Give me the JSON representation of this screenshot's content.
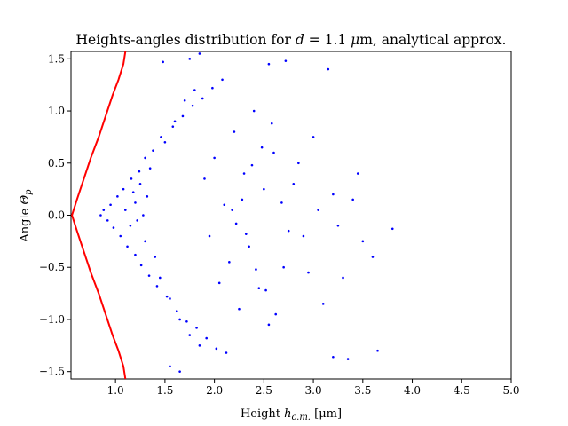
{
  "chart_data": {
    "type": "scatter",
    "title": "Heights-angles distribution for d = 1.1 μm, analytical approx.",
    "title_parts": {
      "lead": "Heights-angles distribution for ",
      "var_d": "d",
      "eq": " = 1.1 ",
      "mu": "μ",
      "tail": "m, analytical approx."
    },
    "xlabel": "Height h_c.m. [μm]",
    "xlabel_parts": {
      "lead": "Height ",
      "var_h": "h",
      "sub": "c.m.",
      "tail": " [μm]"
    },
    "ylabel": "Angle Θ_p",
    "ylabel_parts": {
      "lead": "Angle ",
      "var": "Θ",
      "sub": "p"
    },
    "xlim": [
      0.55,
      5.0
    ],
    "ylim": [
      -1.5708,
      1.5708
    ],
    "x_ticks": [
      "1.0",
      "1.5",
      "2.0",
      "2.5",
      "3.0",
      "3.5",
      "4.0",
      "4.5",
      "5.0"
    ],
    "x_tick_values": [
      1.0,
      1.5,
      2.0,
      2.5,
      3.0,
      3.5,
      4.0,
      4.5,
      5.0
    ],
    "y_ticks": [
      "1.5",
      "1.0",
      "0.5",
      "0.0",
      "−0.5",
      "−1.0",
      "−1.5"
    ],
    "y_tick_values": [
      1.5,
      1.0,
      0.5,
      0.0,
      -0.5,
      -1.0,
      -1.5
    ],
    "grid": false,
    "series": [
      {
        "kind": "scatter",
        "color": "#0000ff",
        "marker_radius_note": "small dots",
        "points": [
          [
            1.1,
            0.05
          ],
          [
            1.15,
            -0.1
          ],
          [
            1.2,
            0.12
          ],
          [
            1.25,
            0.3
          ],
          [
            1.3,
            -0.25
          ],
          [
            1.35,
            0.45
          ],
          [
            1.4,
            -0.4
          ],
          [
            1.28,
            0.0
          ],
          [
            1.22,
            -0.05
          ],
          [
            1.32,
            0.18
          ],
          [
            1.18,
            0.22
          ],
          [
            1.45,
            -0.6
          ],
          [
            1.5,
            0.7
          ],
          [
            1.55,
            -0.8
          ],
          [
            1.6,
            0.9
          ],
          [
            1.65,
            -1.0
          ],
          [
            1.7,
            1.1
          ],
          [
            1.75,
            -1.15
          ],
          [
            1.8,
            1.2
          ],
          [
            1.85,
            -1.25
          ],
          [
            1.9,
            0.35
          ],
          [
            1.95,
            -0.2
          ],
          [
            2.0,
            0.55
          ],
          [
            2.05,
            -0.65
          ],
          [
            2.1,
            0.1
          ],
          [
            2.15,
            -0.45
          ],
          [
            2.2,
            0.8
          ],
          [
            2.25,
            -0.9
          ],
          [
            2.3,
            0.4
          ],
          [
            2.35,
            -0.3
          ],
          [
            2.4,
            1.0
          ],
          [
            2.45,
            -0.7
          ],
          [
            2.5,
            0.25
          ],
          [
            2.55,
            -1.05
          ],
          [
            2.6,
            0.6
          ],
          [
            2.7,
            -0.5
          ],
          [
            2.8,
            0.3
          ],
          [
            2.9,
            -0.2
          ],
          [
            3.0,
            0.75
          ],
          [
            3.1,
            -0.85
          ],
          [
            3.2,
            0.2
          ],
          [
            3.3,
            -0.6
          ],
          [
            3.45,
            0.4
          ],
          [
            3.6,
            -0.4
          ],
          [
            3.8,
            -0.13
          ],
          [
            3.65,
            -1.3
          ],
          [
            3.15,
            1.4
          ],
          [
            3.35,
            -1.38
          ],
          [
            3.2,
            -1.36
          ],
          [
            2.55,
            1.45
          ],
          [
            2.72,
            1.48
          ],
          [
            1.48,
            1.47
          ],
          [
            1.55,
            -1.45
          ],
          [
            1.65,
            -1.5
          ],
          [
            1.75,
            1.5
          ],
          [
            1.85,
            1.55
          ],
          [
            0.85,
            0.0
          ],
          [
            0.88,
            0.05
          ],
          [
            0.92,
            -0.05
          ],
          [
            0.95,
            0.1
          ],
          [
            0.98,
            -0.12
          ],
          [
            1.02,
            0.18
          ],
          [
            1.05,
            -0.2
          ],
          [
            1.08,
            0.25
          ],
          [
            1.12,
            -0.3
          ],
          [
            1.16,
            0.35
          ],
          [
            1.2,
            -0.38
          ],
          [
            1.24,
            0.42
          ],
          [
            1.26,
            -0.48
          ],
          [
            1.3,
            0.55
          ],
          [
            1.34,
            -0.58
          ],
          [
            1.38,
            0.62
          ],
          [
            1.42,
            -0.68
          ],
          [
            1.46,
            0.75
          ],
          [
            1.52,
            -0.78
          ],
          [
            1.58,
            0.85
          ],
          [
            1.62,
            -0.92
          ],
          [
            1.68,
            0.95
          ],
          [
            1.72,
            -1.02
          ],
          [
            1.78,
            1.05
          ],
          [
            1.82,
            -1.08
          ],
          [
            1.88,
            1.12
          ],
          [
            1.92,
            -1.18
          ],
          [
            1.98,
            1.22
          ],
          [
            2.02,
            -1.28
          ],
          [
            2.08,
            1.3
          ],
          [
            2.12,
            -1.32
          ],
          [
            2.18,
            0.05
          ],
          [
            2.22,
            -0.08
          ],
          [
            2.28,
            0.15
          ],
          [
            2.32,
            -0.18
          ],
          [
            2.38,
            0.48
          ],
          [
            2.42,
            -0.52
          ],
          [
            2.48,
            0.65
          ],
          [
            2.52,
            -0.72
          ],
          [
            2.58,
            0.88
          ],
          [
            2.62,
            -0.95
          ],
          [
            2.68,
            0.12
          ],
          [
            2.75,
            -0.15
          ],
          [
            2.85,
            0.5
          ],
          [
            2.95,
            -0.55
          ],
          [
            3.05,
            0.05
          ],
          [
            3.25,
            -0.1
          ],
          [
            3.4,
            0.15
          ],
          [
            3.5,
            -0.25
          ]
        ]
      },
      {
        "kind": "line",
        "name": "",
        "color": "#ff0000",
        "description_note": "analytical boundary curve",
        "curve": [
          [
            1.1,
            -1.5708
          ],
          [
            1.08,
            -1.45
          ],
          [
            1.03,
            -1.3
          ],
          [
            0.97,
            -1.15
          ],
          [
            0.9,
            -0.95
          ],
          [
            0.83,
            -0.75
          ],
          [
            0.75,
            -0.55
          ],
          [
            0.68,
            -0.35
          ],
          [
            0.61,
            -0.15
          ],
          [
            0.56,
            0.0
          ],
          [
            0.61,
            0.15
          ],
          [
            0.68,
            0.35
          ],
          [
            0.75,
            0.55
          ],
          [
            0.83,
            0.75
          ],
          [
            0.9,
            0.95
          ],
          [
            0.97,
            1.15
          ],
          [
            1.03,
            1.3
          ],
          [
            1.08,
            1.45
          ],
          [
            1.1,
            1.5708
          ]
        ]
      }
    ]
  }
}
